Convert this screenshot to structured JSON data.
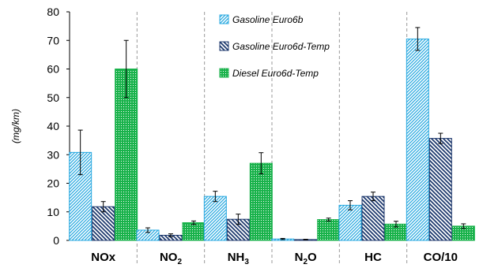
{
  "chart_data": {
    "type": "bar",
    "ylabel": "(mg/km)",
    "ylim": [
      0,
      80
    ],
    "yticks": [
      "0",
      "10",
      "20",
      "30",
      "40",
      "50",
      "60",
      "70",
      "80"
    ],
    "categories": [
      {
        "base": "NOx",
        "sub": ""
      },
      {
        "base": "NO",
        "sub": "2"
      },
      {
        "base": "NH",
        "sub": "3"
      },
      {
        "base": "N",
        "sub": "2",
        "tail": "O"
      },
      {
        "base": "HC",
        "sub": ""
      },
      {
        "base": "CO/10",
        "sub": ""
      }
    ],
    "series": [
      {
        "name": "Gasoline Euro6b",
        "color": "#29a9e0",
        "pattern": "diag-right",
        "values": [
          30.8,
          3.6,
          15.4,
          0.5,
          12.3,
          70.5
        ],
        "errors": [
          7.8,
          0.8,
          1.8,
          0.2,
          1.6,
          4.0
        ]
      },
      {
        "name": "Gasoline Euro6d-Temp",
        "color": "#1f3a6e",
        "pattern": "diag-left",
        "values": [
          11.8,
          1.8,
          7.4,
          0.3,
          15.4,
          35.7
        ],
        "errors": [
          1.8,
          0.5,
          1.8,
          0.1,
          1.5,
          1.8
        ]
      },
      {
        "name": "Diesel Euro6d-Temp",
        "color": "#19b24b",
        "pattern": "dots",
        "values": [
          60.0,
          6.2,
          27.0,
          7.3,
          5.7,
          5.0
        ],
        "errors": [
          10.0,
          0.6,
          3.7,
          0.5,
          1.0,
          0.8
        ]
      }
    ],
    "legend_position": "top-center",
    "grid": false
  }
}
